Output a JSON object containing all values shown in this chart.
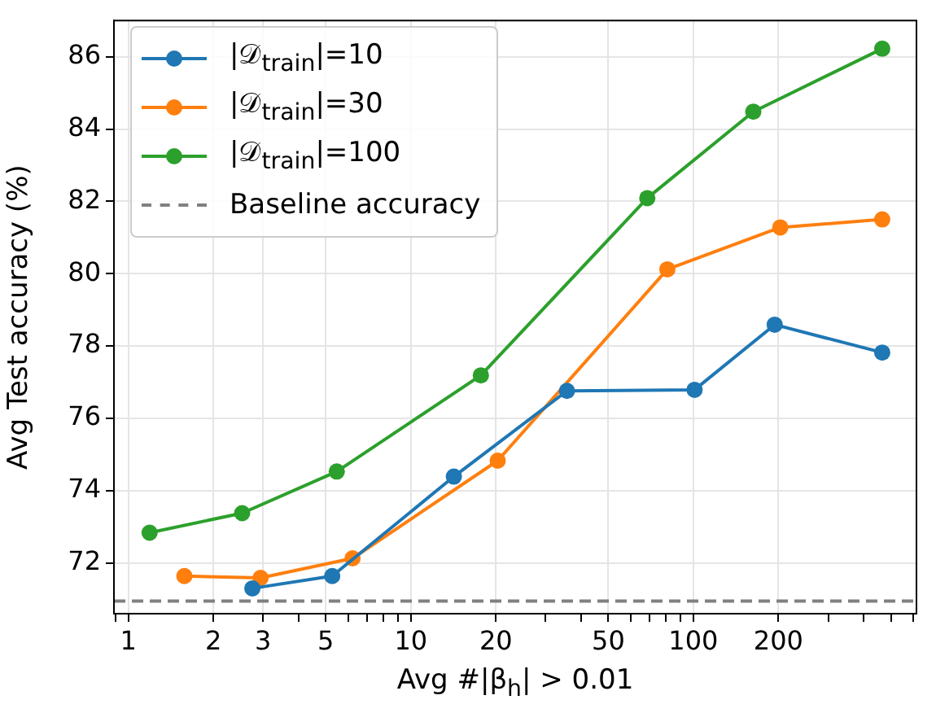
{
  "chart_data": {
    "type": "line",
    "xlabel": "Avg #|β$_{h}$| > 0.01",
    "ylabel": "Avg Test accuracy (%)",
    "log": "x",
    "grid": true,
    "legend": "top left",
    "marker": "circle",
    "line_style": "solid",
    "xlim": [
      0.89,
      616
    ],
    "ylim": [
      70.6,
      87
    ],
    "xticks": [
      {
        "value": 0.9,
        "label": null
      },
      1,
      2,
      3,
      {
        "value": 4,
        "label": null
      },
      5,
      {
        "value": 6,
        "label": null
      },
      {
        "value": 7,
        "label": null
      },
      {
        "value": 8,
        "label": null
      },
      {
        "value": 9,
        "label": null
      },
      10,
      20,
      {
        "value": 30,
        "label": null
      },
      {
        "value": 40,
        "label": null
      },
      50,
      {
        "value": 60,
        "label": null
      },
      {
        "value": 70,
        "label": null
      },
      {
        "value": 80,
        "label": null
      },
      {
        "value": 90,
        "label": null
      },
      100,
      200,
      {
        "value": 300,
        "label": null
      },
      {
        "value": 400,
        "label": null
      },
      {
        "value": 500,
        "label": null
      },
      {
        "value": 600,
        "label": null
      }
    ],
    "yticks": [
      72,
      74,
      76,
      78,
      80,
      82,
      84,
      86
    ],
    "series": [
      {
        "name": "|𝒟$_{train}$|=10",
        "color": "#1f77b4",
        "x": [
          2.75,
          5.27,
          14.2,
          35.7,
          101,
          194,
          466
        ],
        "values": [
          71.3,
          71.64,
          74.39,
          76.76,
          76.79,
          78.59,
          77.82
        ]
      },
      {
        "name": "|𝒟$_{train}$|=30",
        "color": "#ff7f0e",
        "x": [
          1.58,
          2.94,
          6.22,
          20.3,
          80.9,
          203,
          466
        ],
        "values": [
          71.64,
          71.59,
          72.13,
          74.83,
          80.12,
          81.28,
          81.5
        ]
      },
      {
        "name": "|𝒟$_{train}$|=100",
        "color": "#2ca02c",
        "x": [
          1.19,
          2.53,
          5.47,
          17.7,
          68.7,
          163,
          466
        ],
        "values": [
          72.84,
          73.38,
          74.53,
          77.19,
          82.09,
          84.48,
          86.22
        ]
      }
    ],
    "ref_lines": [
      {
        "axis": "y",
        "value": 70.95,
        "label": "Baseline accuracy",
        "color": "#808080",
        "line_style": "dashed"
      }
    ]
  }
}
